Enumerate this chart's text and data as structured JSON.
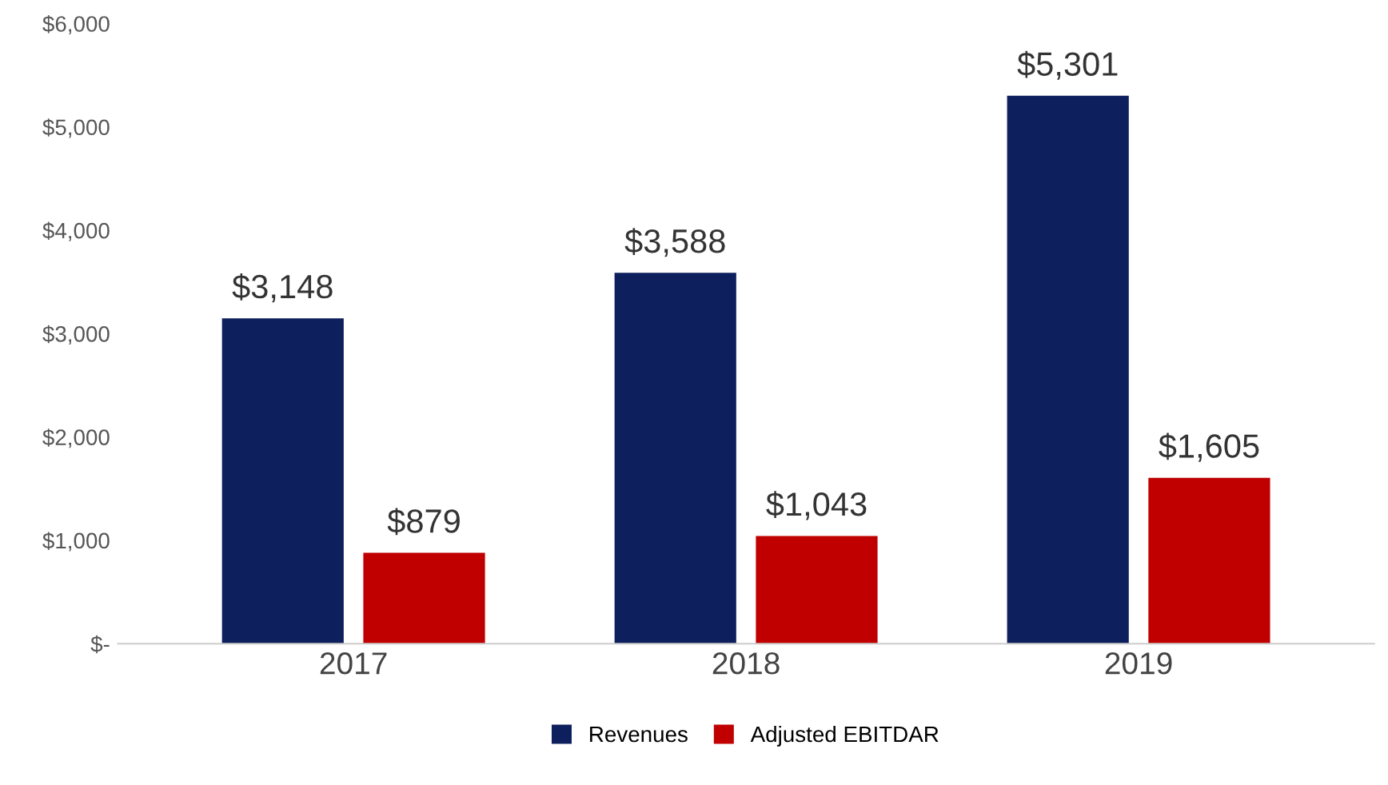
{
  "chart_data": {
    "type": "bar",
    "categories": [
      "2017",
      "2018",
      "2019"
    ],
    "series": [
      {
        "name": "Revenues",
        "color": "#0d1f5c",
        "values": [
          3148,
          3588,
          5301
        ],
        "value_labels": [
          "$3,148",
          "$3,588",
          "$5,301"
        ]
      },
      {
        "name": "Adjusted EBITDAR",
        "color": "#c00000",
        "values": [
          879,
          1043,
          1605
        ],
        "value_labels": [
          "$879",
          "$1,043",
          "$1,605"
        ]
      }
    ],
    "ylim": [
      0,
      6000
    ],
    "yticks": [
      {
        "value": 0,
        "label": "$-"
      },
      {
        "value": 1000,
        "label": "$1,000"
      },
      {
        "value": 2000,
        "label": "$2,000"
      },
      {
        "value": 3000,
        "label": "$3,000"
      },
      {
        "value": 4000,
        "label": "$4,000"
      },
      {
        "value": 5000,
        "label": "$5,000"
      },
      {
        "value": 6000,
        "label": "$6,000"
      }
    ],
    "grid": false,
    "legend": "bottom"
  }
}
